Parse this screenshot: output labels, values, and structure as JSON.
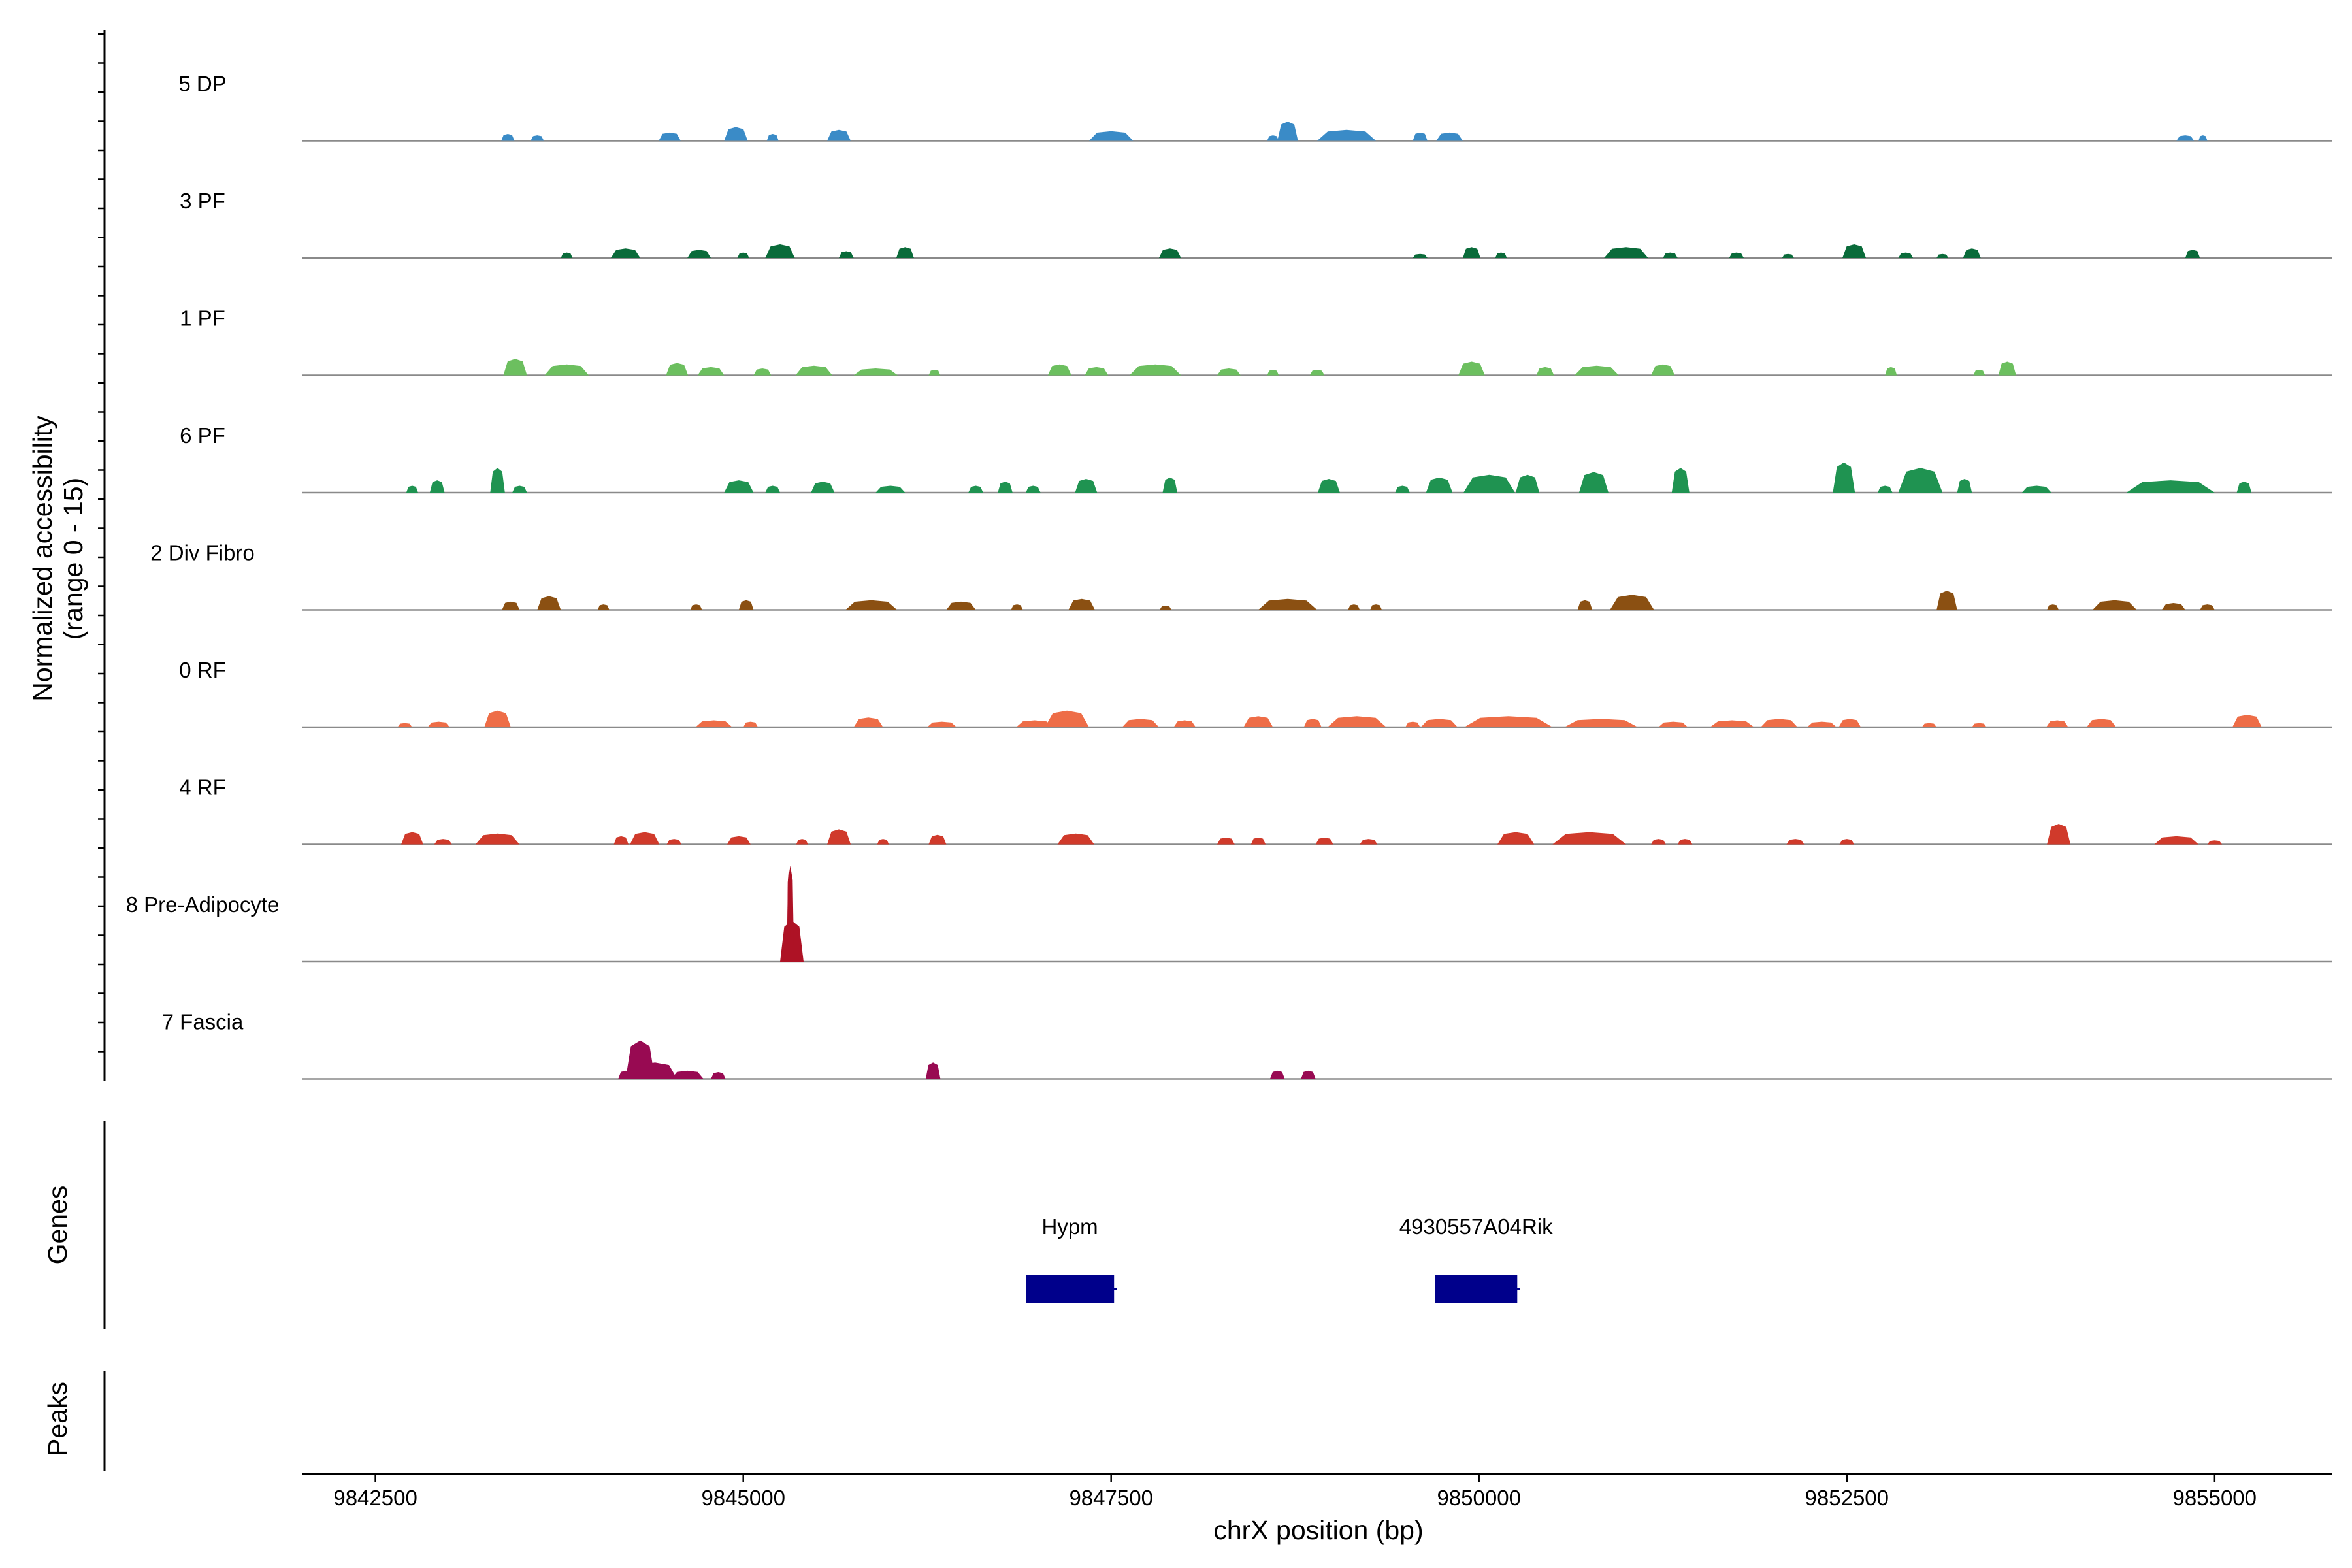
{
  "chart_data": {
    "type": "area",
    "title": "",
    "xlabel": "chrX position (bp)",
    "ylabel_line1": "Normalized accessibility",
    "ylabel_line2": "(range 0 - 15)",
    "ylim": [
      0,
      15
    ],
    "xlim": [
      9842000,
      9855800
    ],
    "x_ticks": [
      9842500,
      9845000,
      9847500,
      9850000,
      9852500,
      9855000
    ],
    "x_tick_labels": [
      "9842500",
      "9845000",
      "9847500",
      "9850000",
      "9852500",
      "9855000"
    ],
    "series": [
      {
        "name": "5 DP",
        "color": "#3A8BC7",
        "peaks": [
          [
            9843400,
            90,
            5
          ],
          [
            9843600,
            90,
            4
          ],
          [
            9844500,
            150,
            6
          ],
          [
            9844950,
            160,
            10
          ],
          [
            9845200,
            80,
            5
          ],
          [
            9845650,
            160,
            8
          ],
          [
            9847500,
            300,
            7
          ],
          [
            9848600,
            80,
            4
          ],
          [
            9848700,
            140,
            14
          ],
          [
            9849100,
            400,
            8
          ],
          [
            9849600,
            100,
            6
          ],
          [
            9849800,
            180,
            6
          ],
          [
            9854800,
            120,
            4
          ],
          [
            9854920,
            60,
            4
          ]
        ]
      },
      {
        "name": "3 PF",
        "color": "#0A6B3A",
        "peaks": [
          [
            9843800,
            80,
            4
          ],
          [
            9844200,
            200,
            7
          ],
          [
            9844700,
            160,
            6
          ],
          [
            9845000,
            80,
            4
          ],
          [
            9845250,
            200,
            10
          ],
          [
            9845700,
            100,
            5
          ],
          [
            9846100,
            120,
            8
          ],
          [
            9847900,
            150,
            7
          ],
          [
            9849600,
            100,
            3
          ],
          [
            9849950,
            120,
            8
          ],
          [
            9850150,
            80,
            4
          ],
          [
            9851000,
            300,
            8
          ],
          [
            9851300,
            100,
            4
          ],
          [
            9851750,
            100,
            4
          ],
          [
            9852100,
            80,
            3
          ],
          [
            9852550,
            160,
            10
          ],
          [
            9852900,
            100,
            4
          ],
          [
            9853150,
            80,
            3
          ],
          [
            9853350,
            120,
            7
          ],
          [
            9854850,
            100,
            6
          ]
        ]
      },
      {
        "name": "1 PF",
        "color": "#6CBF5F",
        "peaks": [
          [
            9843450,
            160,
            12
          ],
          [
            9843800,
            300,
            8
          ],
          [
            9844550,
            150,
            9
          ],
          [
            9844780,
            180,
            6
          ],
          [
            9845130,
            120,
            5
          ],
          [
            9845480,
            250,
            7
          ],
          [
            9845900,
            300,
            5
          ],
          [
            9846300,
            80,
            4
          ],
          [
            9847150,
            160,
            8
          ],
          [
            9847400,
            160,
            6
          ],
          [
            9847800,
            350,
            8
          ],
          [
            9848300,
            160,
            5
          ],
          [
            9848600,
            80,
            4
          ],
          [
            9848900,
            100,
            4
          ],
          [
            9849950,
            180,
            10
          ],
          [
            9850450,
            120,
            6
          ],
          [
            9850800,
            300,
            7
          ],
          [
            9851250,
            160,
            8
          ],
          [
            9852800,
            80,
            6
          ],
          [
            9853400,
            80,
            4
          ],
          [
            9853590,
            120,
            10
          ]
        ]
      },
      {
        "name": "6 PF",
        "color": "#1F9351",
        "peaks": [
          [
            9842750,
            80,
            5
          ],
          [
            9842920,
            100,
            9
          ],
          [
            9843330,
            100,
            18
          ],
          [
            9843480,
            100,
            5
          ],
          [
            9844970,
            200,
            9
          ],
          [
            9845200,
            100,
            5
          ],
          [
            9845540,
            160,
            8
          ],
          [
            9846000,
            200,
            5
          ],
          [
            9846580,
            100,
            5
          ],
          [
            9846780,
            100,
            8
          ],
          [
            9846970,
            100,
            5
          ],
          [
            9847330,
            150,
            10
          ],
          [
            9847900,
            100,
            11
          ],
          [
            9848980,
            150,
            10
          ],
          [
            9849480,
            100,
            5
          ],
          [
            9849730,
            180,
            11
          ],
          [
            9850070,
            350,
            13
          ],
          [
            9850330,
            160,
            13
          ],
          [
            9850780,
            200,
            15
          ],
          [
            9851370,
            120,
            18
          ],
          [
            9852480,
            150,
            22
          ],
          [
            9852760,
            100,
            5
          ],
          [
            9853000,
            300,
            18
          ],
          [
            9853300,
            100,
            10
          ],
          [
            9853790,
            200,
            5
          ],
          [
            9854700,
            600,
            9
          ],
          [
            9855200,
            100,
            8
          ]
        ]
      },
      {
        "name": "2 Div Fibro",
        "color": "#8B5012",
        "peaks": [
          [
            9843420,
            120,
            6
          ],
          [
            9843680,
            160,
            10
          ],
          [
            9844050,
            80,
            4
          ],
          [
            9844680,
            80,
            4
          ],
          [
            9845020,
            100,
            7
          ],
          [
            9845870,
            350,
            7
          ],
          [
            9846480,
            200,
            6
          ],
          [
            9846860,
            80,
            4
          ],
          [
            9847300,
            180,
            8
          ],
          [
            9847870,
            80,
            3
          ],
          [
            9848700,
            400,
            8
          ],
          [
            9849150,
            80,
            4
          ],
          [
            9849300,
            80,
            4
          ],
          [
            9850720,
            100,
            7
          ],
          [
            9851040,
            300,
            11
          ],
          [
            9853180,
            140,
            14
          ],
          [
            9853900,
            80,
            4
          ],
          [
            9854320,
            300,
            7
          ],
          [
            9854720,
            160,
            5
          ],
          [
            9854950,
            100,
            4
          ]
        ]
      },
      {
        "name": "0 RF",
        "color": "#EE6D47",
        "peaks": [
          [
            9842700,
            100,
            3
          ],
          [
            9842930,
            150,
            4
          ],
          [
            9843330,
            180,
            12
          ],
          [
            9844800,
            250,
            5
          ],
          [
            9845050,
            100,
            4
          ],
          [
            9845850,
            200,
            7
          ],
          [
            9846350,
            200,
            4
          ],
          [
            9846980,
            250,
            5
          ],
          [
            9847200,
            300,
            12
          ],
          [
            9847700,
            250,
            6
          ],
          [
            9848000,
            150,
            5
          ],
          [
            9848500,
            200,
            8
          ],
          [
            9848870,
            120,
            6
          ],
          [
            9849170,
            400,
            8
          ],
          [
            9849550,
            100,
            4
          ],
          [
            9849730,
            250,
            6
          ],
          [
            9850200,
            600,
            8
          ],
          [
            9850830,
            500,
            6
          ],
          [
            9851320,
            200,
            4
          ],
          [
            9851720,
            300,
            5
          ],
          [
            9852040,
            250,
            6
          ],
          [
            9852330,
            200,
            4
          ],
          [
            9852520,
            150,
            6
          ],
          [
            9853060,
            100,
            3
          ],
          [
            9853400,
            100,
            3
          ],
          [
            9853930,
            150,
            5
          ],
          [
            9854230,
            200,
            6
          ],
          [
            9855220,
            200,
            9
          ]
        ]
      },
      {
        "name": "4 RF",
        "color": "#D03A2B",
        "peaks": [
          [
            9842750,
            150,
            9
          ],
          [
            9842960,
            120,
            4
          ],
          [
            9843330,
            300,
            8
          ],
          [
            9844170,
            100,
            6
          ],
          [
            9844330,
            200,
            9
          ],
          [
            9844530,
            100,
            4
          ],
          [
            9844970,
            160,
            6
          ],
          [
            9845400,
            80,
            4
          ],
          [
            9845650,
            160,
            11
          ],
          [
            9845950,
            80,
            4
          ],
          [
            9846320,
            120,
            7
          ],
          [
            9847260,
            250,
            8
          ],
          [
            9848280,
            120,
            5
          ],
          [
            9848500,
            100,
            5
          ],
          [
            9848950,
            120,
            5
          ],
          [
            9849250,
            120,
            4
          ],
          [
            9850250,
            250,
            9
          ],
          [
            9850750,
            500,
            9
          ],
          [
            9851220,
            100,
            4
          ],
          [
            9851400,
            100,
            4
          ],
          [
            9852150,
            120,
            4
          ],
          [
            9852500,
            100,
            4
          ],
          [
            9853940,
            160,
            15
          ],
          [
            9854740,
            300,
            6
          ],
          [
            9855000,
            100,
            3
          ]
        ]
      },
      {
        "name": "8 Pre-Adipocyte",
        "color": "#AE1225",
        "peaks": [
          [
            9845330,
            160,
            30
          ],
          [
            9845320,
            50,
            70
          ],
          [
            9845310,
            25,
            68
          ]
        ]
      },
      {
        "name": "7 Fascia",
        "color": "#980A52",
        "peaks": [
          [
            9844200,
            100,
            6
          ],
          [
            9844300,
            200,
            28
          ],
          [
            9844400,
            300,
            12
          ],
          [
            9844620,
            220,
            6
          ],
          [
            9844830,
            100,
            5
          ],
          [
            9846290,
            100,
            12
          ],
          [
            9848630,
            100,
            6
          ],
          [
            9848840,
            100,
            6
          ]
        ]
      }
    ],
    "genes_panel_label": "Genes",
    "genes": [
      {
        "name": "Hypm",
        "start": 9846920,
        "end": 9847520,
        "color": "#00008B"
      },
      {
        "name": "4930557A04Rik",
        "start": 9849700,
        "end": 9850260,
        "color": "#00008B"
      }
    ],
    "peaks_panel_label": "Peaks",
    "peaks_panel_items": []
  }
}
